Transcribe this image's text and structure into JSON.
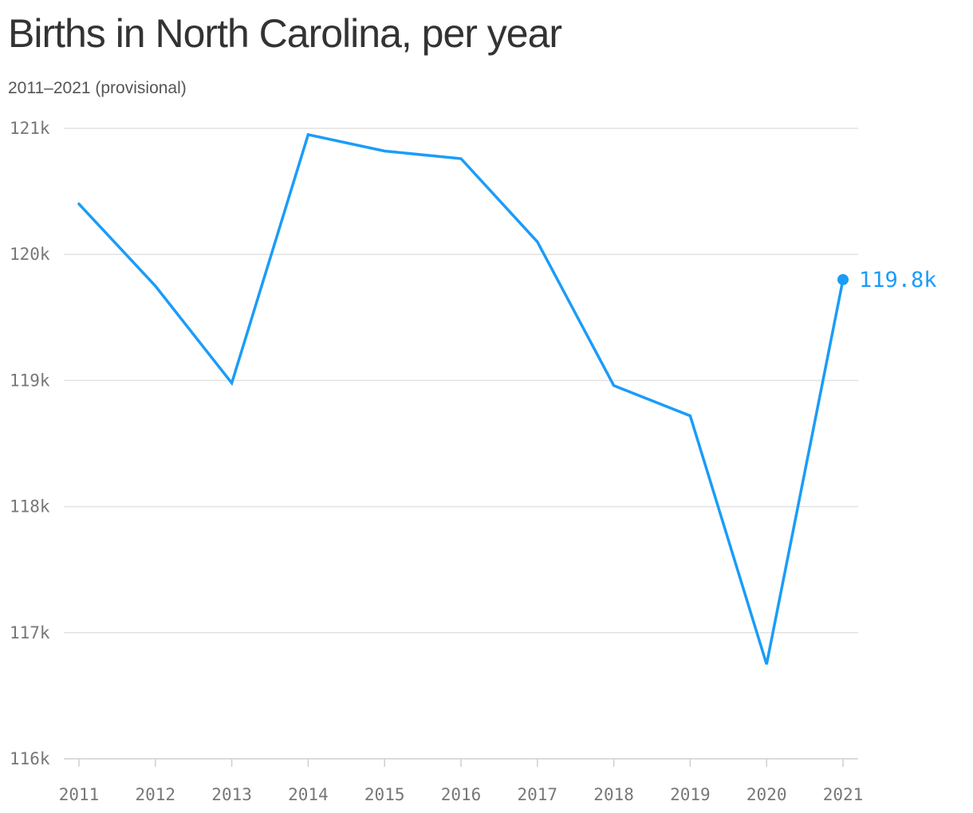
{
  "chart_data": {
    "type": "line",
    "title": "Births in North Carolina, per year",
    "subtitle": "2011–2021 (provisional)",
    "categories": [
      "2011",
      "2012",
      "2013",
      "2014",
      "2015",
      "2016",
      "2017",
      "2018",
      "2019",
      "2020",
      "2021"
    ],
    "series": [
      {
        "values": [
          120400,
          119750,
          118980,
          120950,
          120820,
          120760,
          120100,
          118960,
          118720,
          116750,
          119800
        ],
        "color": "#1b9cf7"
      }
    ],
    "yticks": [
      116000,
      117000,
      118000,
      119000,
      120000,
      121000
    ],
    "ytick_labels": [
      "116k",
      "117k",
      "118k",
      "119k",
      "120k",
      "121k"
    ],
    "ylim": [
      116000,
      121000
    ],
    "grid": true,
    "end_label": "119.8k",
    "xlabel": "",
    "ylabel": ""
  }
}
